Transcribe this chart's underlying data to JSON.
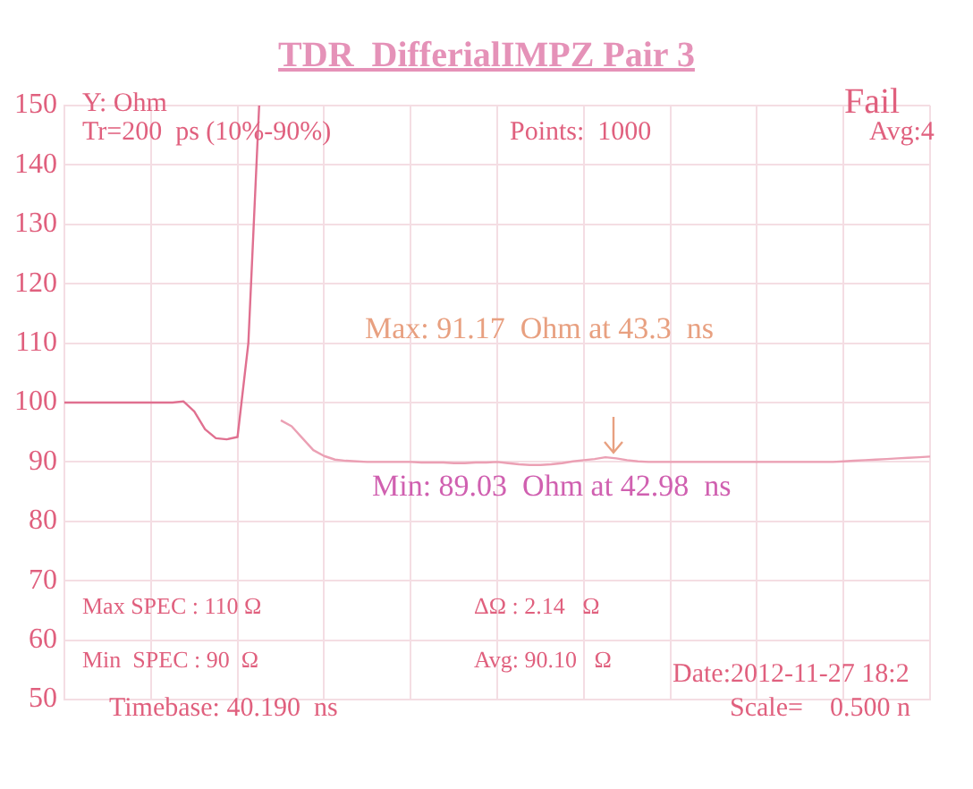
{
  "chart_data": {
    "type": "line",
    "title": "TDR  DifferialIMPZ Pair 3",
    "ylabel": "Y: Ohm",
    "categories": [
      null,
      null,
      null,
      null,
      null,
      null,
      null,
      null,
      null,
      null,
      null,
      null,
      null,
      null,
      null,
      null,
      null,
      null,
      null,
      null,
      null,
      null,
      null,
      null,
      null,
      null,
      null,
      null,
      null,
      null,
      null,
      null,
      null,
      null,
      null,
      null,
      null,
      null,
      null,
      null,
      null,
      null,
      null,
      null,
      null,
      null,
      null,
      null,
      null,
      null,
      null,
      null,
      null,
      null,
      null,
      null,
      null,
      null,
      null,
      null,
      null,
      null,
      null,
      null,
      null,
      null,
      null,
      null,
      null,
      null,
      null,
      null,
      null,
      null,
      null,
      null,
      null,
      null,
      null,
      null,
      null
    ],
    "series": [
      {
        "color": "#e07090",
        "values": [
          100,
          100,
          100,
          100,
          100,
          100,
          100,
          100,
          100,
          100,
          100,
          100.2,
          98.5,
          95.5,
          94,
          93.8,
          94.2,
          110,
          150,
          null,
          null,
          null,
          null,
          null,
          null,
          null,
          null,
          null,
          null,
          null,
          null,
          null,
          null,
          null,
          null,
          null,
          null,
          null,
          null,
          null,
          null,
          null,
          null,
          null,
          null,
          null,
          null,
          null,
          null,
          null,
          null,
          null,
          null,
          null,
          null,
          null,
          null,
          null,
          null,
          null,
          null,
          null,
          null,
          null,
          null,
          null,
          null,
          null,
          null,
          null,
          null,
          null,
          null,
          null,
          null,
          null,
          null,
          null,
          null,
          null,
          null
        ]
      },
      {
        "color": "#eba0b4",
        "values": [
          null,
          null,
          null,
          null,
          null,
          null,
          null,
          null,
          null,
          null,
          null,
          null,
          null,
          null,
          null,
          null,
          null,
          null,
          null,
          null,
          97,
          96,
          94,
          92,
          91,
          90.4,
          90.2,
          90.1,
          90,
          90,
          90,
          90,
          90,
          89.9,
          89.9,
          89.9,
          89.8,
          89.8,
          89.9,
          89.9,
          90,
          89.8,
          89.6,
          89.5,
          89.5,
          89.6,
          89.8,
          90.1,
          90.3,
          90.5,
          90.8,
          90.6,
          90.3,
          90.1,
          90,
          90,
          90,
          90,
          90,
          90,
          90,
          90,
          90,
          90,
          90,
          90,
          90,
          90,
          90,
          90,
          90,
          90,
          90.1,
          90.2,
          90.3,
          90.4,
          90.5,
          90.6,
          90.7,
          90.8,
          90.9
        ]
      }
    ],
    "ylim": [
      50,
      150
    ],
    "yticks": [
      50,
      60,
      70,
      80,
      90,
      100,
      110,
      120,
      130,
      140,
      150
    ],
    "grid": true,
    "legend": false,
    "tick_labels": "y",
    "marker": "none",
    "line_style": "solid",
    "annotations": [
      "Fail",
      "Tr=200  ps (10%-90%)",
      "Points:  1000",
      "Avg:4",
      "Max: 91.17  Ohm at 43.3  ns",
      "Min: 89.03  Ohm at 42.98  ns",
      "Max SPEC : 110 Ω",
      "Min  SPEC : 90  Ω",
      "ΔΩ : 2.14   Ω",
      "Avg: 90.10   Ω",
      "Date:2012-11-27 18:2",
      "Timebase: 40.190  ns",
      "Scale=    0.500 n"
    ]
  }
}
